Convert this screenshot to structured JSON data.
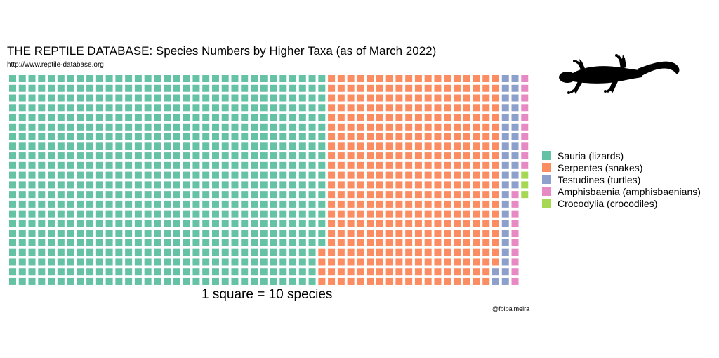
{
  "title": "THE REPTILE DATABASE: Species Numbers by Higher Taxa (as of March 2022)",
  "subtitle": "http://www.reptile-database.org",
  "caption": "1 square = 10 species",
  "credit": "@fblpalmeira",
  "icon": "gecko-silhouette-icon",
  "chart_data": {
    "type": "waffle",
    "unit": "1 square = 10 species",
    "rows": 22,
    "fill_order": "column-major, top to bottom",
    "series": [
      {
        "name": "Sauria (lizards)",
        "squares": 722,
        "color": "#66c2a5"
      },
      {
        "name": "Serpentes (snakes)",
        "squares": 398,
        "color": "#fc8d62"
      },
      {
        "name": "Testudines (turtles)",
        "squares": 36,
        "color": "#8da0cb"
      },
      {
        "name": "Amphisbaenia (amphisbaenians)",
        "squares": 20,
        "color": "#e78ac3"
      },
      {
        "name": "Crocodylia (crocodiles)",
        "squares": 3,
        "color": "#a6d854"
      }
    ],
    "legend_position": "right"
  }
}
